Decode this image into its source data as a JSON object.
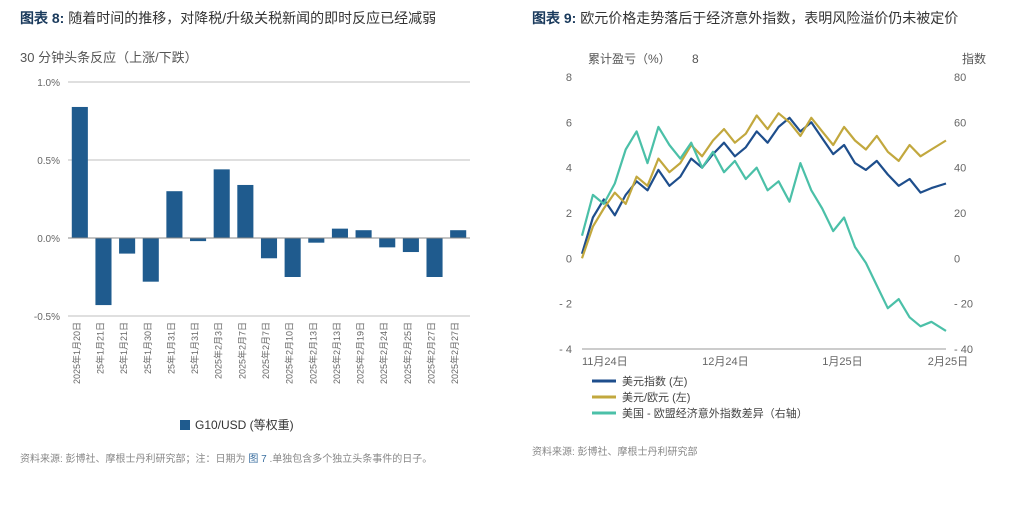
{
  "left_chart": {
    "title_label": "图表 8:",
    "title_text": "随着时间的推移，对降税/升级关税新闻的即时反应已经减弱",
    "subtitle": "30 分钟头条反应（上涨/下跌）",
    "type": "bar",
    "categories": [
      "2025年1月20日",
      "25年1月21日",
      "25年1月21日",
      "25年1月30日",
      "25年1月31日",
      "25年1月31日",
      "2025年2月3日",
      "2025年2月7日",
      "2025年2月7日",
      "2025年2月10日",
      "2025年2月13日",
      "2025年2月13日",
      "2025年2月19日",
      "2025年2月24日",
      "2025年2月25日",
      "2025年2月27日",
      "2025年2月27日"
    ],
    "values": [
      0.84,
      -0.43,
      -0.1,
      -0.28,
      0.3,
      -0.02,
      0.44,
      0.34,
      -0.13,
      -0.25,
      -0.03,
      0.06,
      0.05,
      -0.06,
      -0.09,
      -0.25,
      0.05
    ],
    "bar_color": "#1f5b8e",
    "ylim": [
      -0.5,
      1.0
    ],
    "ytick_step": 0.5,
    "grid_color": "#bfbfbf",
    "background_color": "#ffffff",
    "legend_label": "G10/USD (等权重)",
    "axis_font_size": 10,
    "source_text": "资料来源: 彭博社、摩根士丹利研究部；注：日期为",
    "source_link_text": "图 7",
    "source_suffix": ".单独包含多个独立头条事件的日子。"
  },
  "right_chart": {
    "title_label": "图表 9:",
    "title_text": "欧元价格走势落后于经济意外指数，表明风险溢价仍未被定价",
    "subtitle_left": "累计盈亏（%）",
    "subtitle_left_value": "8",
    "subtitle_right": "指数",
    "type": "line",
    "x_dates": [
      "11月24日",
      "12月24日",
      "1月25日",
      "2月25日"
    ],
    "left_ylim": [
      -4,
      8
    ],
    "left_yticks": [
      -4,
      -2,
      0,
      2,
      4,
      6,
      8
    ],
    "right_ylim": [
      -40,
      80
    ],
    "right_yticks": [
      -40,
      -20,
      0,
      20,
      40,
      60,
      80
    ],
    "series": [
      {
        "name": "美元指数 (左)",
        "color": "#1e4e8c",
        "axis": "left",
        "key": "dxy"
      },
      {
        "name": "美元/欧元 (左)",
        "color": "#c2a83e",
        "axis": "left",
        "key": "eur"
      },
      {
        "name": "美国 - 欧盟经济意外指数差异（右轴）",
        "color": "#4bc0a8",
        "axis": "right",
        "key": "surprise"
      }
    ],
    "data": {
      "x_frac": [
        0.0,
        0.03,
        0.06,
        0.09,
        0.12,
        0.15,
        0.18,
        0.21,
        0.24,
        0.27,
        0.3,
        0.33,
        0.36,
        0.39,
        0.42,
        0.45,
        0.48,
        0.51,
        0.54,
        0.57,
        0.6,
        0.63,
        0.66,
        0.69,
        0.72,
        0.75,
        0.78,
        0.81,
        0.84,
        0.87,
        0.9,
        0.93,
        0.96,
        1.0
      ],
      "dxy": [
        0.2,
        1.8,
        2.6,
        1.9,
        2.8,
        3.4,
        3.0,
        3.9,
        3.2,
        3.6,
        4.4,
        4.0,
        4.6,
        5.1,
        4.5,
        4.9,
        5.6,
        5.1,
        5.8,
        6.2,
        5.6,
        6.0,
        5.3,
        4.6,
        5.0,
        4.2,
        3.9,
        4.3,
        3.7,
        3.2,
        3.5,
        2.9,
        3.1,
        3.3
      ],
      "eur": [
        0.0,
        1.4,
        2.2,
        2.9,
        2.4,
        3.6,
        3.2,
        4.4,
        3.8,
        4.2,
        5.0,
        4.5,
        5.2,
        5.7,
        5.1,
        5.5,
        6.3,
        5.7,
        6.4,
        6.0,
        5.4,
        6.2,
        5.6,
        5.0,
        5.8,
        5.2,
        4.8,
        5.4,
        4.7,
        4.3,
        5.0,
        4.5,
        4.8,
        5.2
      ],
      "surprise": [
        10,
        28,
        24,
        33,
        48,
        56,
        42,
        58,
        50,
        44,
        51,
        40,
        47,
        38,
        43,
        35,
        40,
        30,
        34,
        25,
        42,
        30,
        22,
        12,
        18,
        5,
        -2,
        -12,
        -22,
        -18,
        -26,
        -30,
        -28,
        -32
      ]
    },
    "grid_color": "#bfbfbf",
    "background_color": "#ffffff",
    "axis_font_size": 11,
    "source_text": "资料来源: 彭博社、摩根士丹利研究部"
  }
}
